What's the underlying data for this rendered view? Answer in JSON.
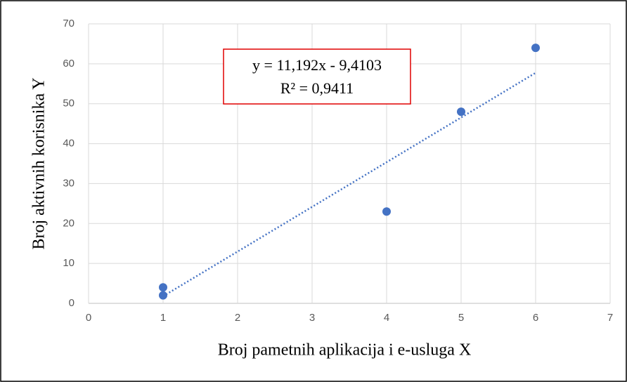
{
  "chart_data": {
    "type": "scatter",
    "x_label": "Broj pametnih aplikacija i e-usluga  X",
    "y_label": "Broj aktivnih korisnika  Y",
    "x": [
      1,
      1,
      4,
      5,
      6
    ],
    "values": [
      4,
      2,
      23,
      48,
      64
    ],
    "color": "#4472c4",
    "trendline": {
      "x": [
        1,
        6
      ],
      "values": [
        1.78,
        57.74
      ],
      "color": "#4472c4"
    },
    "annotation": [
      "y = 11,192x - 9,4103",
      "R² = 0,9411"
    ],
    "xlim": [
      0,
      7
    ],
    "xticks": [
      0,
      1,
      2,
      3,
      4,
      5,
      6,
      7
    ],
    "ylim": [
      0,
      70
    ],
    "yticks": [
      0,
      10,
      20,
      30,
      40,
      50,
      60,
      70
    ],
    "grid": true
  }
}
